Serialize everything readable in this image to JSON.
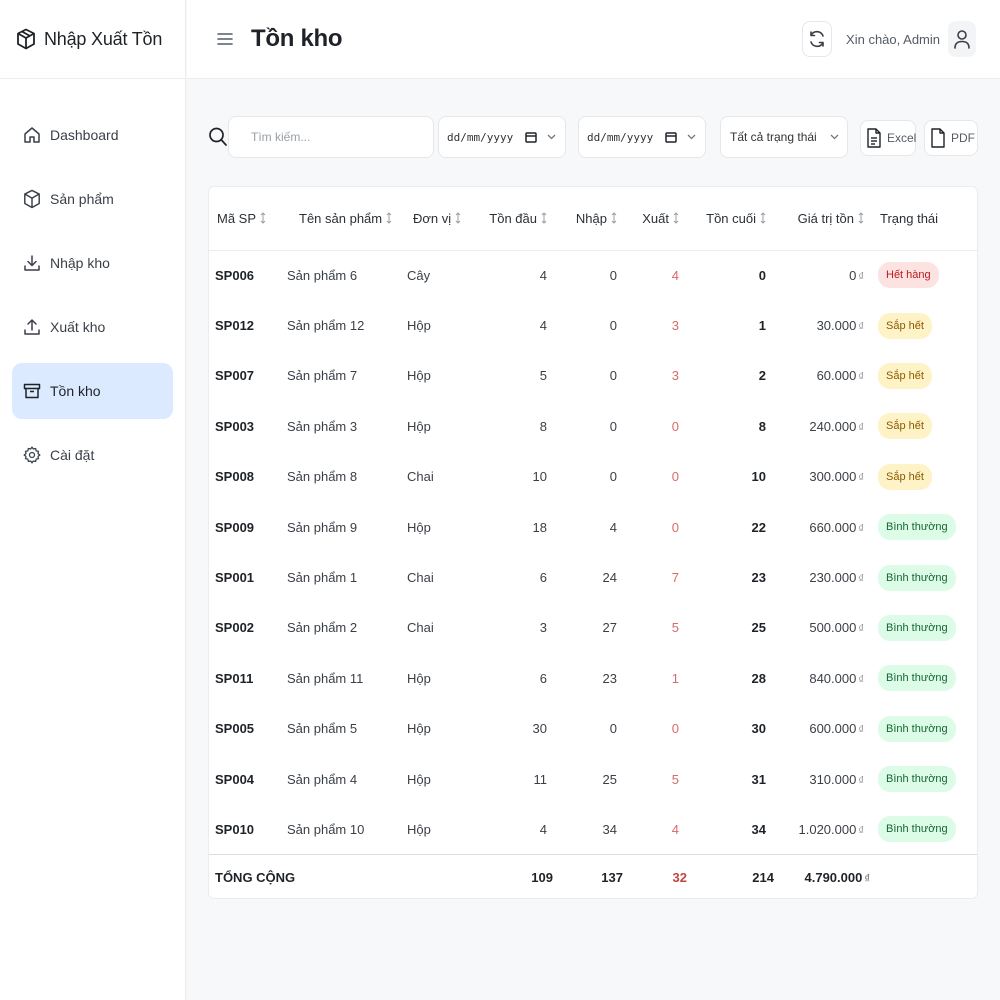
{
  "app": {
    "title": "Nhập Xuất Tồn"
  },
  "sidebar": {
    "items": [
      {
        "label": "Dashboard",
        "icon": "home-icon",
        "active": false
      },
      {
        "label": "Sản phẩm",
        "icon": "package-icon",
        "active": false
      },
      {
        "label": "Nhập kho",
        "icon": "download-icon",
        "active": false
      },
      {
        "label": "Xuất kho",
        "icon": "upload-icon",
        "active": false
      },
      {
        "label": "Tồn kho",
        "icon": "archive-icon",
        "active": true
      },
      {
        "label": "Cài đặt",
        "icon": "gear-icon",
        "active": false
      }
    ]
  },
  "header": {
    "title": "Tồn kho",
    "greeting": "Xin chào, Admin"
  },
  "toolbar": {
    "search_placeholder": "Tìm kiếm...",
    "date_from": "dd/mm/yyyy",
    "date_to": "dd/mm/yyyy",
    "status_selected": "Tất cả trạng thái",
    "excel_label": "Excel",
    "pdf_label": "PDF"
  },
  "table": {
    "columns": [
      "Mã SP",
      "Tên sản phẩm",
      "Đơn vị",
      "Tồn đầu",
      "Nhập",
      "Xuất",
      "Tồn cuối",
      "Giá trị tồn",
      "Trạng thái"
    ],
    "rows": [
      {
        "code": "SP006",
        "name": "Sản phẩm 6",
        "unit": "Cây",
        "start": "4",
        "in": "0",
        "out": "4",
        "end": "0",
        "value": "0",
        "status": "Hết hàng",
        "status_type": "out"
      },
      {
        "code": "SP012",
        "name": "Sản phẩm 12",
        "unit": "Hộp",
        "start": "4",
        "in": "0",
        "out": "3",
        "end": "1",
        "value": "30.000",
        "status": "Sắp hết",
        "status_type": "low"
      },
      {
        "code": "SP007",
        "name": "Sản phẩm 7",
        "unit": "Hộp",
        "start": "5",
        "in": "0",
        "out": "3",
        "end": "2",
        "value": "60.000",
        "status": "Sắp hết",
        "status_type": "low"
      },
      {
        "code": "SP003",
        "name": "Sản phẩm 3",
        "unit": "Hộp",
        "start": "8",
        "in": "0",
        "out": "0",
        "end": "8",
        "value": "240.000",
        "status": "Sắp hết",
        "status_type": "low"
      },
      {
        "code": "SP008",
        "name": "Sản phẩm 8",
        "unit": "Chai",
        "start": "10",
        "in": "0",
        "out": "0",
        "end": "10",
        "value": "300.000",
        "status": "Sắp hết",
        "status_type": "low"
      },
      {
        "code": "SP009",
        "name": "Sản phẩm 9",
        "unit": "Hộp",
        "start": "18",
        "in": "4",
        "out": "0",
        "end": "22",
        "value": "660.000",
        "status": "Bình thường",
        "status_type": "normal"
      },
      {
        "code": "SP001",
        "name": "Sản phẩm 1",
        "unit": "Chai",
        "start": "6",
        "in": "24",
        "out": "7",
        "end": "23",
        "value": "230.000",
        "status": "Bình thường",
        "status_type": "normal"
      },
      {
        "code": "SP002",
        "name": "Sản phẩm 2",
        "unit": "Chai",
        "start": "3",
        "in": "27",
        "out": "5",
        "end": "25",
        "value": "500.000",
        "status": "Bình thường",
        "status_type": "normal"
      },
      {
        "code": "SP011",
        "name": "Sản phẩm 11",
        "unit": "Hộp",
        "start": "6",
        "in": "23",
        "out": "1",
        "end": "28",
        "value": "840.000",
        "status": "Bình thường",
        "status_type": "normal"
      },
      {
        "code": "SP005",
        "name": "Sản phẩm 5",
        "unit": "Hộp",
        "start": "30",
        "in": "0",
        "out": "0",
        "end": "30",
        "value": "600.000",
        "status": "Bình thường",
        "status_type": "normal"
      },
      {
        "code": "SP004",
        "name": "Sản phẩm 4",
        "unit": "Hộp",
        "start": "11",
        "in": "25",
        "out": "5",
        "end": "31",
        "value": "310.000",
        "status": "Bình thường",
        "status_type": "normal"
      },
      {
        "code": "SP010",
        "name": "Sản phẩm 10",
        "unit": "Hộp",
        "start": "4",
        "in": "34",
        "out": "4",
        "end": "34",
        "value": "1.020.000",
        "status": "Bình thường",
        "status_type": "normal"
      }
    ],
    "totals": {
      "label": "TỔNG CỘNG",
      "start": "109",
      "in": "137",
      "out": "32",
      "end": "214",
      "value": "4.790.000"
    },
    "currency_symbol": "₫"
  }
}
